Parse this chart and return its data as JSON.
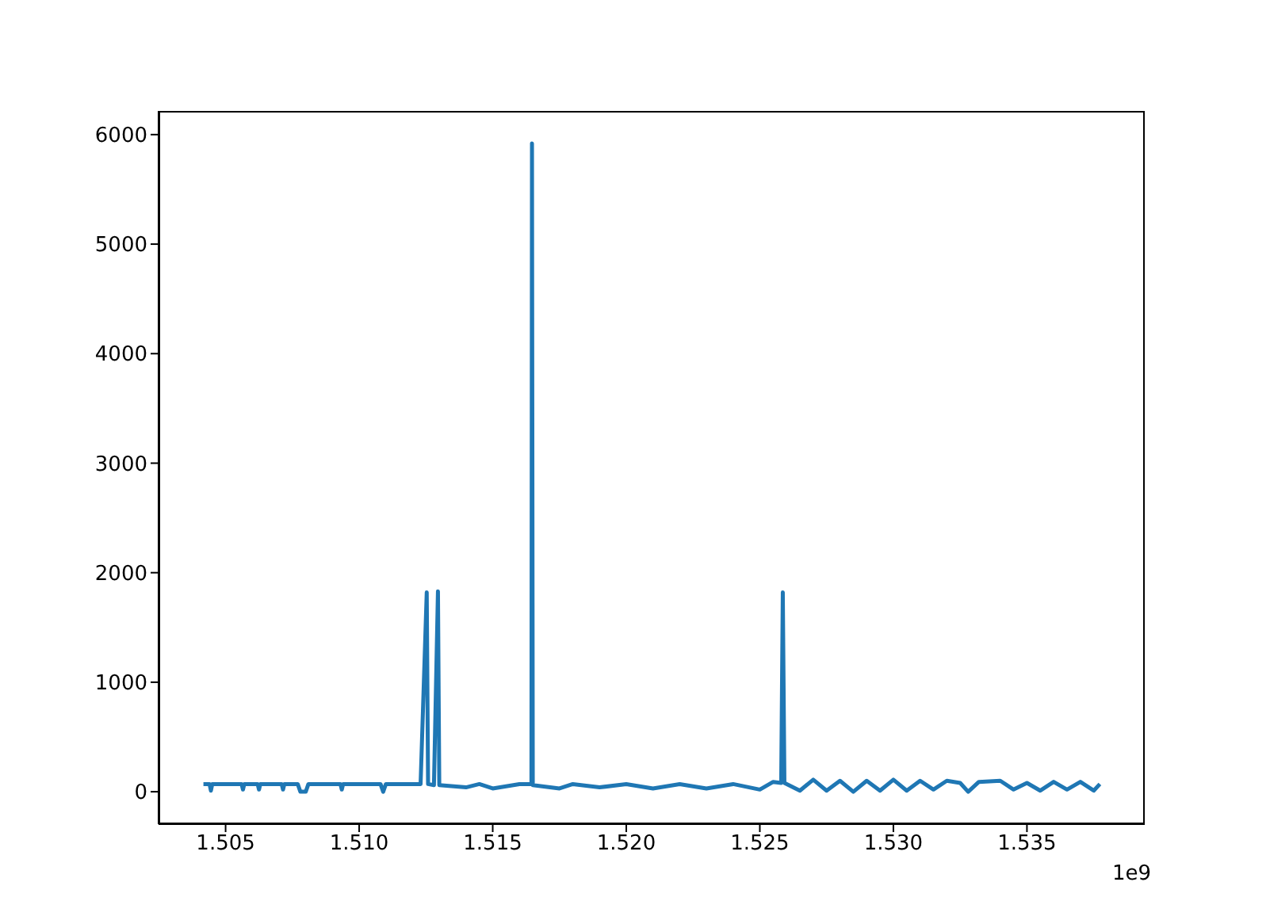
{
  "chart_data": {
    "type": "line",
    "x": [
      1.50417,
      1.5044,
      1.50445,
      1.5045,
      1.5056,
      1.50565,
      1.5057,
      1.5062,
      1.50625,
      1.5063,
      1.5071,
      1.50715,
      1.5072,
      1.5077,
      1.5078,
      1.508,
      1.5081,
      1.5093,
      1.50935,
      1.5094,
      1.5108,
      1.5109,
      1.511,
      1.5123,
      1.51253,
      1.51258,
      1.5128,
      1.51295,
      1.513,
      1.514,
      1.5145,
      1.515,
      1.516,
      1.51645,
      1.51647,
      1.5165,
      1.5175,
      1.518,
      1.519,
      1.52,
      1.521,
      1.522,
      1.523,
      1.524,
      1.525,
      1.5255,
      1.5258,
      1.52586,
      1.52592,
      1.5265,
      1.527,
      1.5275,
      1.528,
      1.5285,
      1.529,
      1.5295,
      1.53,
      1.5305,
      1.531,
      1.5315,
      1.532,
      1.5325,
      1.5328,
      1.5332,
      1.534,
      1.5345,
      1.535,
      1.5355,
      1.536,
      1.5365,
      1.537,
      1.5375,
      1.53773
    ],
    "series": [
      {
        "color": "#1f77b4",
        "values": [
          70,
          70,
          10,
          70,
          70,
          20,
          70,
          70,
          20,
          70,
          70,
          20,
          70,
          70,
          0,
          0,
          70,
          70,
          20,
          70,
          70,
          0,
          70,
          70,
          1820,
          70,
          60,
          1830,
          60,
          40,
          70,
          30,
          70,
          70,
          5920,
          60,
          30,
          70,
          40,
          70,
          30,
          70,
          30,
          70,
          20,
          90,
          80,
          1820,
          80,
          10,
          110,
          10,
          100,
          0,
          100,
          10,
          110,
          10,
          100,
          20,
          100,
          80,
          0,
          90,
          100,
          20,
          80,
          10,
          90,
          20,
          90,
          10,
          70
        ]
      }
    ],
    "xlim": [
      1.50249,
      1.53941
    ],
    "xticks": [
      1.505,
      {
        "value": 1.51,
        "label": "1.510"
      },
      1.515,
      {
        "value": 1.52,
        "label": "1.520"
      },
      1.525,
      {
        "value": 1.53,
        "label": "1.530"
      },
      1.535
    ],
    "ylim": [
      -296,
      6216
    ],
    "yticks": [
      0,
      1000,
      2000,
      3000,
      4000,
      5000,
      6000
    ],
    "annotations": [
      "1e9"
    ],
    "marker": "none",
    "line_style": "solid",
    "grid": false,
    "legend": false
  }
}
